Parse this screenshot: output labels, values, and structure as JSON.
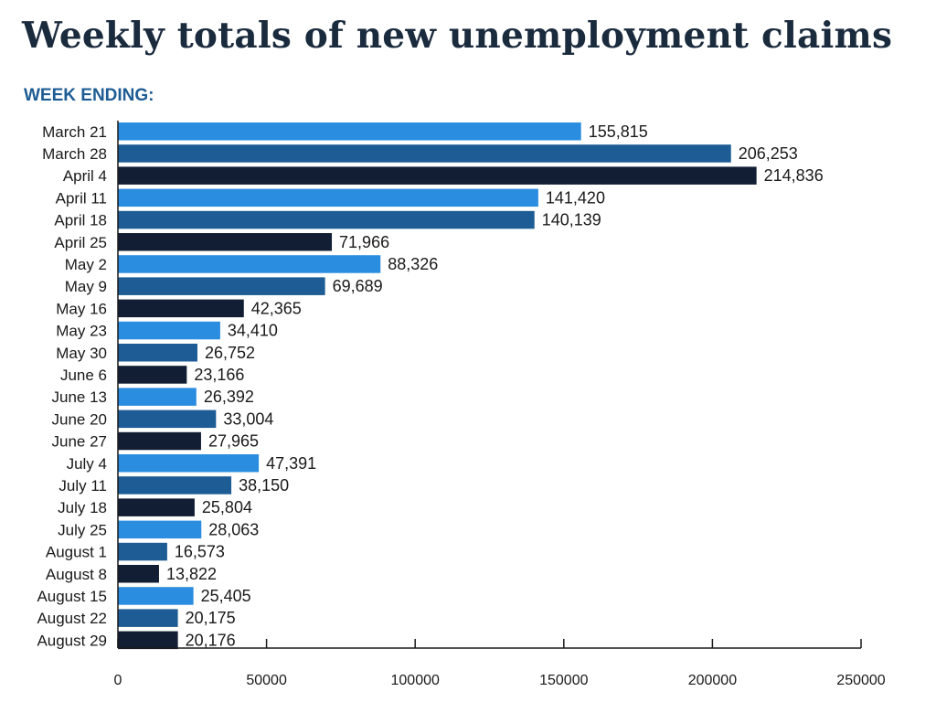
{
  "title": "Weekly totals of new unemployment claims",
  "subtitle": "WEEK ENDING:",
  "colors": {
    "cycle": [
      "#2b8de0",
      "#1d5c94",
      "#111e33"
    ],
    "title": "#1b2b3e",
    "subtitle": "#1d5c94"
  },
  "chart_data": {
    "type": "bar",
    "orientation": "horizontal",
    "title": "Weekly totals of new unemployment claims",
    "subtitle": "WEEK ENDING:",
    "categories": [
      "March 21",
      "March 28",
      "April 4",
      "April 11",
      "April 18",
      "April 25",
      "May 2",
      "May 9",
      "May 16",
      "May 23",
      "May 30",
      "June 6",
      "June 13",
      "June 20",
      "June 27",
      "July 4",
      "July 11",
      "July 18",
      "July 25",
      "August 1",
      "August 8",
      "August 15",
      "August 22",
      "August 29"
    ],
    "values": [
      155815,
      206253,
      214836,
      141420,
      140139,
      71966,
      88326,
      69689,
      42365,
      34410,
      26752,
      23166,
      26392,
      33004,
      27965,
      47391,
      38150,
      25804,
      28063,
      16573,
      13822,
      25405,
      20175,
      20176
    ],
    "value_labels": [
      "155,815",
      "206,253",
      "214,836",
      "141,420",
      "140,139",
      "71,966",
      "88,326",
      "69,689",
      "42,365",
      "34,410",
      "26,752",
      "23,166",
      "26,392",
      "33,004",
      "27,965",
      "47,391",
      "38,150",
      "25,804",
      "28,063",
      "16,573",
      "13,822",
      "25,405",
      "20,175",
      "20,176"
    ],
    "xticks": [
      0,
      50000,
      100000,
      150000,
      200000,
      250000
    ],
    "xtick_labels": [
      "0",
      "50000",
      "100000",
      "150000",
      "200000",
      "250000"
    ],
    "xlim": [
      0,
      250000
    ],
    "xlabel": "",
    "ylabel": "",
    "grid": false,
    "legend": "none"
  }
}
